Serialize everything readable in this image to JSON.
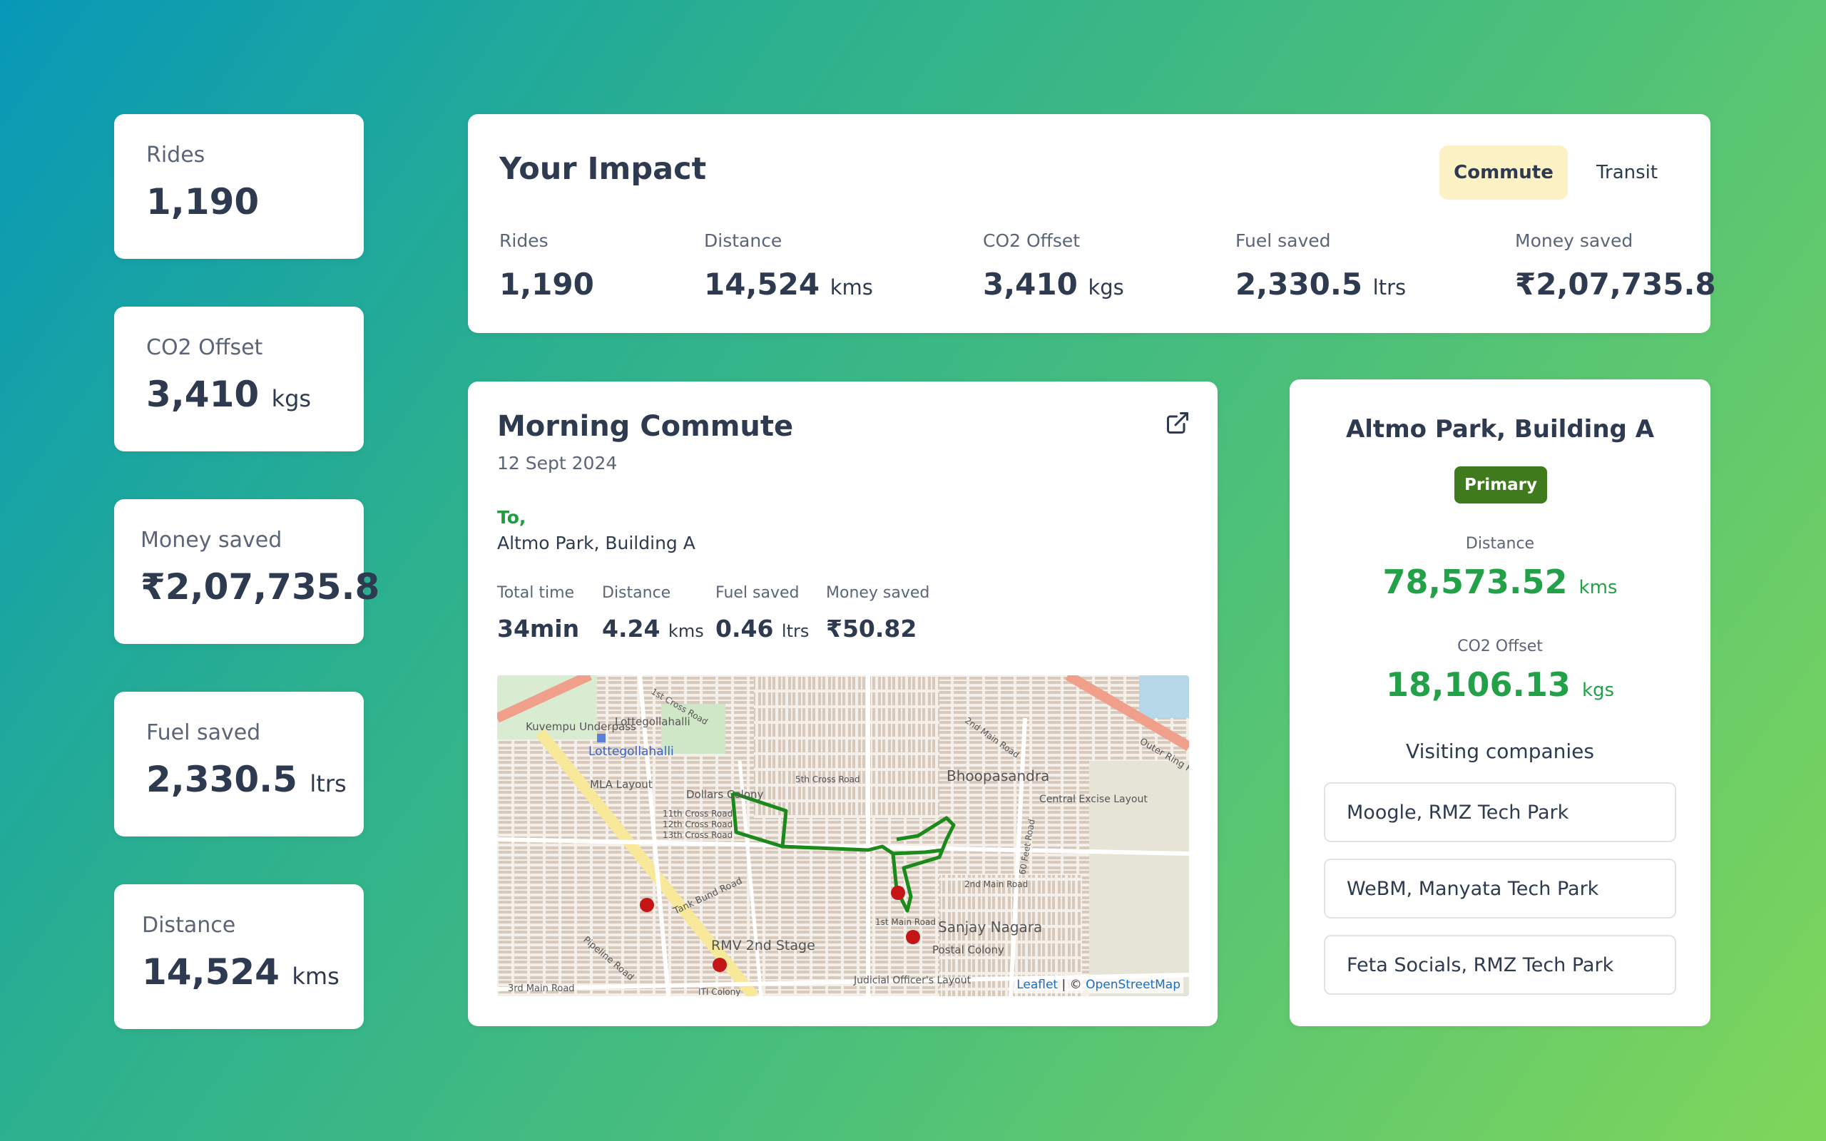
{
  "left_stats": [
    {
      "label": "Rides",
      "value": "1,190",
      "unit": ""
    },
    {
      "label": "CO2 Offset",
      "value": "3,410",
      "unit": "kgs"
    },
    {
      "label": "Money saved",
      "value": "₹2,07,735.8",
      "unit": ""
    },
    {
      "label": "Fuel saved",
      "value": "2,330.5",
      "unit": "ltrs"
    },
    {
      "label": "Distance",
      "value": "14,524",
      "unit": "kms"
    }
  ],
  "impact": {
    "title": "Your Impact",
    "tabs": [
      "Commute",
      "Transit"
    ],
    "active_tab": "Commute",
    "stats": [
      {
        "label": "Rides",
        "value": "1,190",
        "unit": ""
      },
      {
        "label": "Distance",
        "value": "14,524",
        "unit": "kms"
      },
      {
        "label": "CO2 Offset",
        "value": "3,410",
        "unit": "kgs"
      },
      {
        "label": "Fuel saved",
        "value": "2,330.5",
        "unit": "ltrs"
      },
      {
        "label": "Money saved",
        "value": "₹2,07,735.8",
        "unit": ""
      }
    ]
  },
  "commute": {
    "title": "Morning Commute",
    "date": "12 Sept 2024",
    "to_label": "To,",
    "destination": "Altmo Park, Building A",
    "stats": [
      {
        "label": "Total time",
        "value": "34min",
        "unit": ""
      },
      {
        "label": "Distance",
        "value": "4.24",
        "unit": "kms"
      },
      {
        "label": "Fuel saved",
        "value": "0.46",
        "unit": "ltrs"
      },
      {
        "label": "Money saved",
        "value": "₹50.82",
        "unit": ""
      }
    ],
    "map": {
      "labels": [
        "Kuvempu Underpass",
        "Lottegollahalli",
        "MLA Layout",
        "Dollars Colony",
        "11th Cross Road",
        "12th Cross Road",
        "13th Cross Road",
        "Tank Bund Road",
        "Pipeline Road",
        "3rd Main Road",
        "RMV 2nd Stage",
        "Bhoopasandra",
        "Central Excise Layout",
        "Sanjay Nagara",
        "Postal Colony",
        "Judicial Officer's Layout",
        "2nd Main Road",
        "1st Main Road",
        "60 Feet Road",
        "5th Cross Road",
        "1st Cross Road",
        "2nd Main Road",
        "Outer Ring Road",
        "ITI Colony"
      ],
      "attribution_leaflet": "Leaflet",
      "attribution_sep": " | © ",
      "attribution_osm": "OpenStreetMap",
      "route_color": "#1b8a1b"
    }
  },
  "building": {
    "title": "Altmo Park, Building A",
    "badge": "Primary",
    "distance_label": "Distance",
    "distance_value": "78,573.52",
    "distance_unit": "kms",
    "co2_label": "CO2 Offset",
    "co2_value": "18,106.13",
    "co2_unit": "kgs",
    "visiting_title": "Visiting companies",
    "companies": [
      "Moogle, RMZ Tech Park",
      "WeBM, Manyata Tech Park",
      "Feta Socials, RMZ Tech Park"
    ]
  },
  "colors": {
    "accent_green": "#22a148",
    "badge_green": "#3f7b1c",
    "tab_active_bg": "#fdf1c6"
  }
}
